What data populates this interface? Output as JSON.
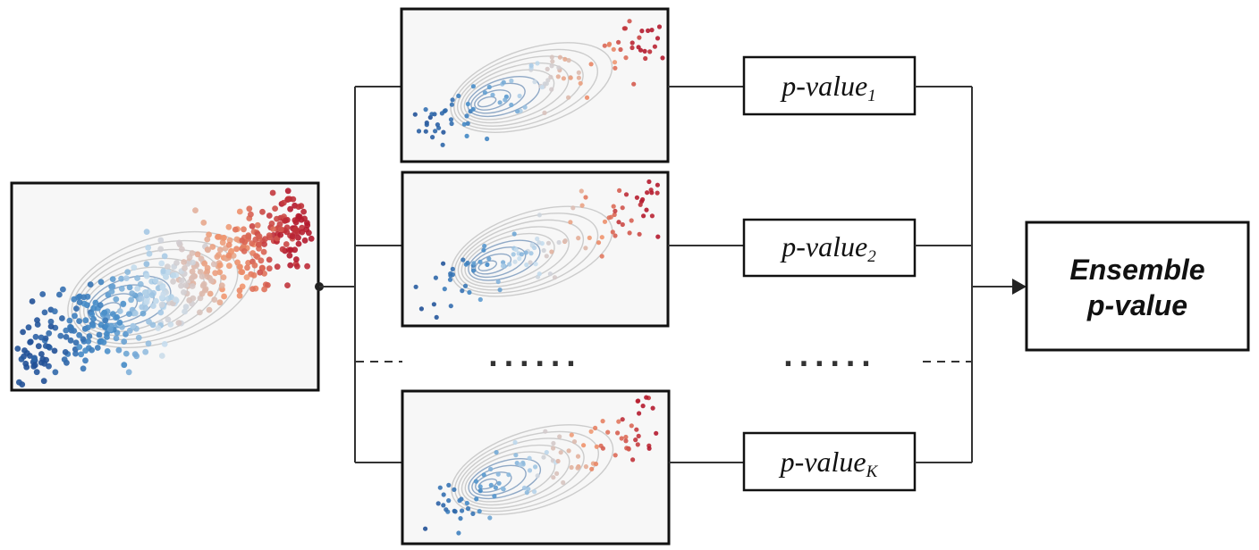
{
  "pvalue_boxes": [
    {
      "main": "p-value",
      "subscript": "1"
    },
    {
      "main": "p-value",
      "subscript": "2"
    },
    {
      "main": "p-value",
      "subscript": "K"
    }
  ],
  "ensemble": {
    "line1": "Ensemble",
    "line2": "p-value"
  },
  "ellipsis": "......",
  "colors": {
    "panel_bg": "#f7f7f7",
    "border": "#111111",
    "low": "#2c5c9a",
    "mid": "#cfe0ee",
    "high": "#b2182b"
  },
  "icons": [
    "arrow-right-icon",
    "junction-dot-icon"
  ]
}
